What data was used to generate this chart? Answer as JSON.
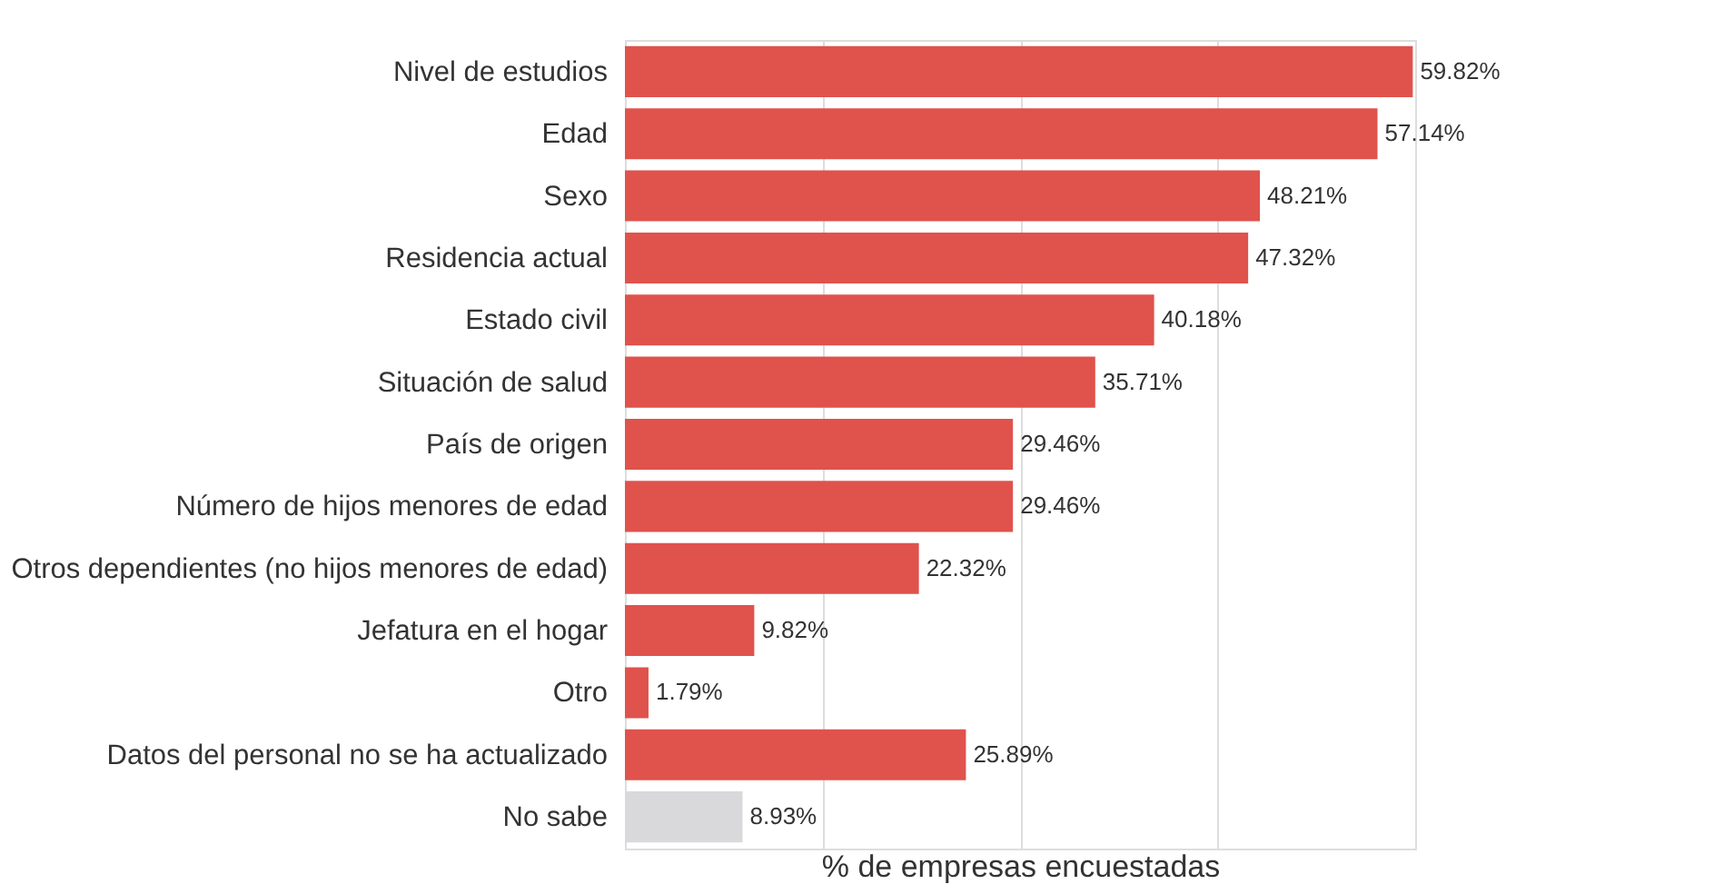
{
  "chart_data": {
    "type": "bar",
    "orientation": "horizontal",
    "xlabel": "% de empresas encuestadas",
    "categories": [
      "Nivel de estudios",
      "Edad",
      "Sexo",
      "Residencia actual",
      "Estado civil",
      "Situación de salud",
      "País de origen",
      "Número de hijos menores de edad",
      "Otros dependientes (no hijos menores de edad)",
      "Jefatura en el hogar",
      "Otro",
      "Datos del personal no se ha actualizado",
      "No sabe"
    ],
    "values": [
      59.82,
      57.14,
      48.21,
      47.32,
      40.18,
      35.71,
      29.46,
      29.46,
      22.32,
      9.82,
      1.79,
      25.89,
      8.93
    ],
    "value_labels": [
      "59.82%",
      "57.14%",
      "48.21%",
      "47.32%",
      "40.18%",
      "35.71%",
      "29.46%",
      "29.46%",
      "22.32%",
      "9.82%",
      "1.79%",
      "25.89%",
      "8.93%"
    ],
    "colors": [
      "#e0524c",
      "#e0524c",
      "#e0524c",
      "#e0524c",
      "#e0524c",
      "#e0524c",
      "#e0524c",
      "#e0524c",
      "#e0524c",
      "#e0524c",
      "#e0524c",
      "#e0524c",
      "#d9d9dc"
    ],
    "xlim": [
      0,
      60
    ],
    "xticks": [
      {
        "value": 0,
        "label": null
      },
      {
        "value": 15,
        "label": null
      },
      {
        "value": 30,
        "label": null
      },
      {
        "value": 45,
        "label": null
      },
      {
        "value": 60,
        "label": null
      }
    ],
    "grid": "x",
    "tick_labels": "y"
  }
}
